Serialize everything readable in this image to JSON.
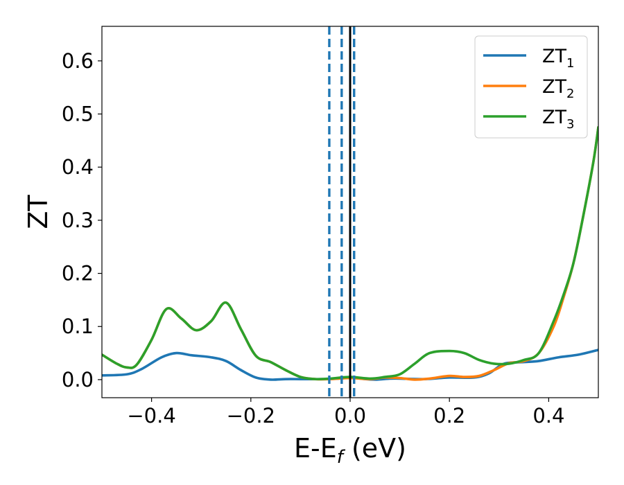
{
  "chart_data": {
    "type": "line",
    "xlabel": {
      "main": "E-E",
      "sub": "f",
      "suffix": " (eV)"
    },
    "ylabel": "ZT",
    "xlim": [
      -0.5,
      0.5
    ],
    "ylim": [
      -0.034,
      0.665
    ],
    "xticks": [
      -0.4,
      -0.2,
      0.0,
      0.2,
      0.4
    ],
    "xtick_labels": [
      "−0.4",
      "−0.2",
      "0.0",
      "0.2",
      "0.4"
    ],
    "yticks": [
      0.0,
      0.1,
      0.2,
      0.3,
      0.4,
      0.5,
      0.6
    ],
    "ytick_labels": [
      "0.0",
      "0.1",
      "0.2",
      "0.3",
      "0.4",
      "0.5",
      "0.6"
    ],
    "grid": false,
    "legend_position": "top-right",
    "vlines": [
      {
        "x": -0.042,
        "style": "dashed",
        "color": "#1f77b4"
      },
      {
        "x": -0.017,
        "style": "dashed",
        "color": "#1f77b4"
      },
      {
        "x": 0.008,
        "style": "dashed",
        "color": "#1f77b4"
      },
      {
        "x": 0.0,
        "style": "solid",
        "color": "#000000"
      }
    ],
    "series": [
      {
        "name": "ZT1",
        "label_main": "ZT",
        "label_sub": "1",
        "color": "#1f77b4",
        "x": [
          -0.5,
          -0.45,
          -0.42,
          -0.38,
          -0.35,
          -0.32,
          -0.28,
          -0.25,
          -0.22,
          -0.19,
          -0.16,
          -0.13,
          -0.1,
          -0.06,
          -0.02,
          0.0,
          0.02,
          0.05,
          0.08,
          0.1,
          0.15,
          0.2,
          0.25,
          0.28,
          0.31,
          0.35,
          0.38,
          0.42,
          0.46,
          0.5
        ],
        "y": [
          0.008,
          0.01,
          0.02,
          0.042,
          0.05,
          0.046,
          0.042,
          0.035,
          0.018,
          0.004,
          0.0,
          0.001,
          0.001,
          0.001,
          0.002,
          0.004,
          0.002,
          0.0,
          0.002,
          0.002,
          0.001,
          0.004,
          0.004,
          0.012,
          0.03,
          0.033,
          0.035,
          0.042,
          0.047,
          0.056
        ]
      },
      {
        "name": "ZT2",
        "label_main": "ZT",
        "label_sub": "2",
        "color": "#ff7f0e",
        "x": [
          -0.5,
          -0.47,
          -0.45,
          -0.43,
          -0.4,
          -0.37,
          -0.34,
          -0.31,
          -0.28,
          -0.25,
          -0.22,
          -0.19,
          -0.16,
          -0.13,
          -0.1,
          -0.07,
          -0.04,
          0.0,
          0.04,
          0.07,
          0.1,
          0.13,
          0.16,
          0.2,
          0.23,
          0.26,
          0.29,
          0.32,
          0.35,
          0.38,
          0.41,
          0.43,
          0.45,
          0.47,
          0.49,
          0.5
        ],
        "y": [
          0.047,
          0.03,
          0.023,
          0.028,
          0.075,
          0.133,
          0.115,
          0.093,
          0.11,
          0.145,
          0.095,
          0.045,
          0.033,
          0.018,
          0.005,
          0.001,
          0.001,
          0.003,
          0.001,
          0.004,
          0.003,
          0.0,
          0.002,
          0.007,
          0.005,
          0.007,
          0.018,
          0.031,
          0.035,
          0.05,
          0.1,
          0.155,
          0.22,
          0.31,
          0.41,
          0.475
        ]
      },
      {
        "name": "ZT3",
        "label_main": "ZT",
        "label_sub": "3",
        "color": "#2ca02c",
        "x": [
          -0.5,
          -0.47,
          -0.45,
          -0.43,
          -0.4,
          -0.37,
          -0.34,
          -0.31,
          -0.28,
          -0.25,
          -0.22,
          -0.19,
          -0.16,
          -0.13,
          -0.1,
          -0.07,
          -0.04,
          0.0,
          0.04,
          0.07,
          0.1,
          0.13,
          0.16,
          0.2,
          0.23,
          0.26,
          0.29,
          0.32,
          0.35,
          0.38,
          0.41,
          0.43,
          0.45,
          0.47,
          0.49,
          0.5
        ],
        "y": [
          0.047,
          0.03,
          0.023,
          0.028,
          0.075,
          0.133,
          0.115,
          0.093,
          0.11,
          0.145,
          0.095,
          0.045,
          0.033,
          0.018,
          0.005,
          0.001,
          0.002,
          0.005,
          0.002,
          0.005,
          0.01,
          0.03,
          0.05,
          0.054,
          0.05,
          0.037,
          0.03,
          0.03,
          0.037,
          0.05,
          0.11,
          0.16,
          0.22,
          0.31,
          0.41,
          0.475
        ]
      }
    ]
  }
}
